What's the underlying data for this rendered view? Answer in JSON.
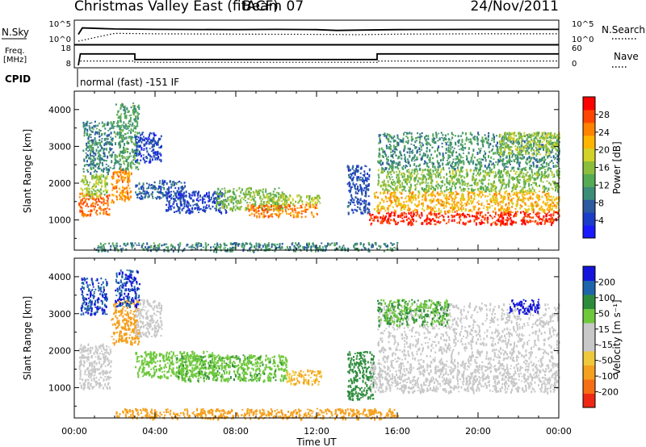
{
  "header": {
    "title": "Christmas Valley East (fitACF)",
    "beam": "Beam 07",
    "date": "24/Nov/2011"
  },
  "panels": {
    "nsky": {
      "left_label": "N.Sky",
      "left_ticks": [
        "10^5",
        "10^0"
      ],
      "right_ticks": [
        "10^5",
        "10^0"
      ],
      "right_label": "N.Search"
    },
    "freq": {
      "left_label_1": "Freq.",
      "left_label_2": "[MHz]",
      "left_ticks": [
        "18",
        "8"
      ],
      "right_ticks": [
        "60",
        "0"
      ],
      "right_label": "Nave"
    },
    "cpid": {
      "label": "CPID",
      "mode": "normal (fast) -151 IF"
    }
  },
  "time_axis": {
    "title": "Time UT",
    "ticks": [
      "00:00",
      "04:00",
      "08:00",
      "12:00",
      "16:00",
      "20:00",
      "00:00"
    ]
  },
  "power_panel": {
    "ylabel": "Slant Range [km]",
    "yticks": [
      "1000",
      "2000",
      "3000",
      "4000"
    ],
    "colorbar": {
      "title": "Power [dB]",
      "ticks": [
        "4",
        "8",
        "12",
        "16",
        "20",
        "24",
        "28"
      ],
      "colors": [
        "#1a1aff",
        "#1b3dc8",
        "#2d5aa0",
        "#3c8c78",
        "#55aa55",
        "#8cbe3c",
        "#d2d228",
        "#ffb400",
        "#ff8200",
        "#ff4600",
        "#ff0000"
      ]
    }
  },
  "velocity_panel": {
    "ylabel": "Slant Range [km]",
    "yticks": [
      "1000",
      "2000",
      "3000",
      "4000"
    ],
    "colorbar": {
      "title": "Velocity [m s⁻¹]",
      "ticks": [
        "200",
        "100",
        "50",
        "15",
        "-15",
        "-50",
        "-100",
        "-200"
      ],
      "colors": [
        "#1414dc",
        "#1e64aa",
        "#2d8c3c",
        "#6ec83c",
        "#c8c8c8",
        "#c8c8c8",
        "#f0c83c",
        "#f5a01e",
        "#f56e14",
        "#ee2814"
      ]
    }
  },
  "chart_data": [
    {
      "type": "line",
      "title": "N.Sky / N.Search",
      "x_unit": "UT hours",
      "series": [
        {
          "name": "N.Sky",
          "x": [
            0.2,
            0.4,
            2,
            4,
            8,
            10,
            12,
            13,
            14,
            16,
            20,
            24
          ],
          "y": [
            100,
            8000,
            4000,
            3000,
            2500,
            3000,
            2500,
            1500,
            1800,
            2500,
            3000,
            3000
          ]
        },
        {
          "name": "N.Search",
          "x": [
            0.2,
            2,
            4,
            8,
            12,
            14,
            16,
            20,
            24
          ],
          "y": [
            1,
            200,
            150,
            120,
            100,
            80,
            120,
            150,
            150
          ]
        }
      ],
      "ylim": [
        1,
        100000
      ],
      "log_scale": true
    },
    {
      "type": "line",
      "title": "Freq. / Nave",
      "series": [
        {
          "name": "Freq. [MHz]",
          "x": [
            0.2,
            0.3,
            3.0,
            3.0,
            15.0,
            15.0,
            24
          ],
          "y": [
            8,
            15.5,
            15.5,
            11.8,
            11.8,
            15.5,
            15.5
          ]
        },
        {
          "name": "Nave",
          "x": [
            0.3,
            3.0,
            3.0,
            15.0,
            15.0,
            24
          ],
          "y": [
            17,
            17,
            12,
            12,
            17,
            17
          ]
        }
      ],
      "ylim_freq": [
        8,
        18
      ],
      "ylim_nave": [
        0,
        60
      ]
    },
    {
      "type": "heatmap",
      "title": "Power [dB]",
      "x_unit": "UT hours",
      "y_unit": "km",
      "xlim": [
        0,
        24
      ],
      "ylim": [
        180,
        4500
      ],
      "clim": [
        0,
        32
      ],
      "patches": [
        {
          "t": [
            0.2,
            1.7
          ],
          "r": [
            1150,
            1750
          ],
          "v": 26
        },
        {
          "t": [
            0.3,
            1.6
          ],
          "r": [
            1650,
            2300
          ],
          "v": 17
        },
        {
          "t": [
            0.4,
            2.0
          ],
          "r": [
            2300,
            3700
          ],
          "v": 10
        },
        {
          "t": [
            1.8,
            2.8
          ],
          "r": [
            1500,
            2400
          ],
          "v": 24
        },
        {
          "t": [
            2.0,
            3.2
          ],
          "r": [
            2400,
            4200
          ],
          "v": 12
        },
        {
          "t": [
            3.0,
            4.3
          ],
          "r": [
            2600,
            3400
          ],
          "v": 5
        },
        {
          "t": [
            3.0,
            5.5
          ],
          "r": [
            1600,
            2100
          ],
          "v": 7
        },
        {
          "t": [
            4.5,
            7.5
          ],
          "r": [
            1200,
            1800
          ],
          "v": 5
        },
        {
          "t": [
            7.0,
            10.5
          ],
          "r": [
            1300,
            1900
          ],
          "v": 15
        },
        {
          "t": [
            8.5,
            12.0
          ],
          "r": [
            1100,
            1450
          ],
          "v": 25
        },
        {
          "t": [
            9.5,
            12.2
          ],
          "r": [
            1450,
            1700
          ],
          "v": 17
        },
        {
          "t": [
            13.5,
            14.6
          ],
          "r": [
            1200,
            2500
          ],
          "v": 6
        },
        {
          "t": [
            14.6,
            24.0
          ],
          "r": [
            900,
            1250
          ],
          "v": 29
        },
        {
          "t": [
            14.8,
            24.0
          ],
          "r": [
            1250,
            1800
          ],
          "v": 22
        },
        {
          "t": [
            15.0,
            24.0
          ],
          "r": [
            1800,
            2400
          ],
          "v": 15
        },
        {
          "t": [
            15.0,
            24.0
          ],
          "r": [
            2400,
            3400
          ],
          "v": 11
        },
        {
          "t": [
            21.0,
            24.0
          ],
          "r": [
            2800,
            3400
          ],
          "v": 17
        },
        {
          "t": [
            1.0,
            16.0
          ],
          "r": [
            180,
            400
          ],
          "v": 10
        }
      ]
    },
    {
      "type": "heatmap",
      "title": "Velocity [m s⁻¹]",
      "x_unit": "UT hours",
      "y_unit": "km",
      "xlim": [
        0,
        24
      ],
      "ylim": [
        180,
        4500
      ],
      "patches": [
        {
          "t": [
            0.2,
            1.8
          ],
          "r": [
            1000,
            2200
          ],
          "v": 0
        },
        {
          "t": [
            0.3,
            1.6
          ],
          "r": [
            3000,
            4000
          ],
          "v": 150
        },
        {
          "t": [
            1.8,
            3.2
          ],
          "r": [
            2200,
            3400
          ],
          "v": -60
        },
        {
          "t": [
            2.0,
            3.2
          ],
          "r": [
            3200,
            4200
          ],
          "v": 150
        },
        {
          "t": [
            3.0,
            4.3
          ],
          "r": [
            2400,
            3400
          ],
          "v": 0
        },
        {
          "t": [
            3.0,
            7.0
          ],
          "r": [
            1300,
            2000
          ],
          "v": 25
        },
        {
          "t": [
            5.0,
            10.5
          ],
          "r": [
            1200,
            1900
          ],
          "v": 28
        },
        {
          "t": [
            10.5,
            12.2
          ],
          "r": [
            1100,
            1500
          ],
          "v": -30
        },
        {
          "t": [
            13.5,
            14.8
          ],
          "r": [
            700,
            2000
          ],
          "v": 35
        },
        {
          "t": [
            14.6,
            24.0
          ],
          "r": [
            900,
            1700
          ],
          "v": 0
        },
        {
          "t": [
            15.0,
            24.0
          ],
          "r": [
            1700,
            3300
          ],
          "v": 0
        },
        {
          "t": [
            15.0,
            18.5
          ],
          "r": [
            2700,
            3400
          ],
          "v": 30
        },
        {
          "t": [
            21.5,
            23.0
          ],
          "r": [
            3000,
            3400
          ],
          "v": 180
        },
        {
          "t": [
            2.0,
            16.0
          ],
          "r": [
            180,
            450
          ],
          "v": -60
        }
      ]
    }
  ]
}
